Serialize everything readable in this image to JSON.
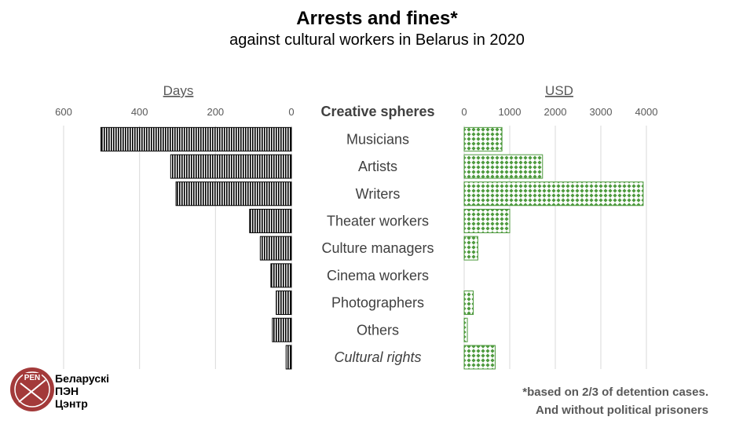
{
  "title": "Arrests and fines*",
  "subtitle": "against cultural workers in Belarus in 2020",
  "footnote_line1": "*based on 2/3 of detention cases.",
  "footnote_line2": "And without political prisoners",
  "logo": {
    "circle_text": "PEN",
    "line1": "Беларускі",
    "line2": "ПЭН",
    "line3": "Цэнтр"
  },
  "colors": {
    "bar_days": "#000000",
    "bar_usd": "#4e9a3e",
    "grid": "#d9d9d9",
    "footnote": "#595959"
  },
  "chart_data": [
    {
      "type": "bar",
      "orientation": "horizontal",
      "direction": "right-to-left",
      "axis_title": "Days",
      "xlim": [
        0,
        600
      ],
      "ticks": [
        "600",
        "400",
        "200",
        "0"
      ],
      "tick_values": [
        600,
        400,
        200,
        0
      ],
      "categories": [
        "Musicians",
        "Artists",
        "Writers",
        "Theater workers",
        "Culture managers",
        "Cinema workers",
        "Photographers",
        "Others",
        "Cultural rights"
      ],
      "values": [
        502,
        318,
        304,
        110,
        82,
        54,
        40,
        50,
        14
      ],
      "grid": true
    },
    {
      "type": "bar",
      "orientation": "horizontal",
      "axis_title": "USD",
      "xlim": [
        0,
        4000
      ],
      "ticks": [
        "0",
        "1000",
        "2000",
        "3000",
        "4000"
      ],
      "tick_values": [
        0,
        1000,
        2000,
        3000,
        4000
      ],
      "categories": [
        "Musicians",
        "Artists",
        "Writers",
        "Theater workers",
        "Culture managers",
        "Cinema workers",
        "Photographers",
        "Others",
        "Cultural rights"
      ],
      "values": [
        830,
        1720,
        3930,
        1000,
        300,
        0,
        200,
        70,
        680
      ],
      "grid": true
    }
  ],
  "category_header": "Creative spheres",
  "italic_categories": [
    "Cultural rights"
  ]
}
